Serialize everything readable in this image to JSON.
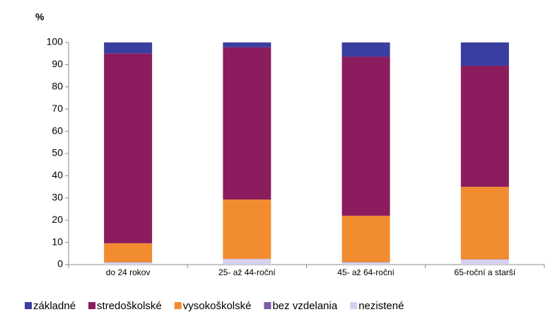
{
  "chart_data": {
    "type": "stacked_bar",
    "y_label": "%",
    "categories": [
      "do 24 rokov",
      "25- až 44-roční",
      "45- až 64-roční",
      "65-roční a starší"
    ],
    "series": [
      {
        "name": "nezistené",
        "color": "#d6d1f0",
        "values": [
          1.0,
          2.5,
          1.0,
          2.3
        ]
      },
      {
        "name": "bez vzdelania",
        "color": "#7b5ea7",
        "values": [
          0.1,
          0.1,
          0.1,
          0.1
        ]
      },
      {
        "name": "vysokoškolské",
        "color": "#f28c30",
        "values": [
          8.5,
          26.7,
          20.9,
          32.6
        ]
      },
      {
        "name": "stredoškolské",
        "color": "#8b1c5e",
        "values": [
          85.4,
          68.5,
          71.6,
          54.5
        ]
      },
      {
        "name": "základné",
        "color": "#3a3ea0",
        "values": [
          5.0,
          2.2,
          6.4,
          10.5
        ]
      }
    ],
    "legend_order": [
      4,
      3,
      2,
      1,
      0
    ],
    "ylim": [
      0,
      100
    ],
    "yticks": [
      0,
      10,
      20,
      30,
      40,
      50,
      60,
      70,
      80,
      90,
      100
    ],
    "grid": false
  }
}
